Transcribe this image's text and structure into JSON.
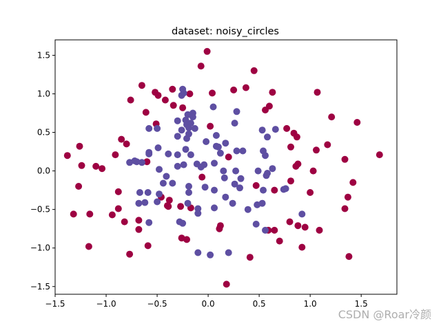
{
  "chart_data": {
    "type": "scatter",
    "title": "dataset: noisy_circles",
    "xlabel": "",
    "ylabel": "",
    "xlim": [
      -1.5,
      1.85
    ],
    "ylim": [
      -1.6,
      1.7
    ],
    "xticks": [
      "−1.5",
      "−1.0",
      "−0.5",
      "0.0",
      "0.5",
      "1.0",
      "1.5"
    ],
    "xtick_values": [
      -1.5,
      -1.0,
      -0.5,
      0.0,
      0.5,
      1.0,
      1.5
    ],
    "yticks": [
      "−1.5",
      "−1.0",
      "−0.5",
      "0.0",
      "0.5",
      "1.0",
      "1.5"
    ],
    "ytick_values": [
      -1.5,
      -1.0,
      -0.5,
      0.0,
      0.5,
      1.0,
      1.5
    ],
    "grid": false,
    "colors": {
      "outer": "#9e0142",
      "inner": "#5e4fa2"
    },
    "series": [
      {
        "class": "outer",
        "points": [
          [
            -0.01,
            1.55
          ],
          [
            -0.07,
            1.36
          ],
          [
            0.45,
            1.3
          ],
          [
            0.37,
            1.08
          ],
          [
            0.63,
            1.02
          ],
          [
            1.07,
            1.02
          ],
          [
            -0.65,
            1.11
          ],
          [
            -0.52,
            1.02
          ],
          [
            -0.35,
            1.06
          ],
          [
            -0.18,
            1.0
          ],
          [
            0.04,
            1.01
          ],
          [
            0.25,
            1.05
          ],
          [
            -0.76,
            0.92
          ],
          [
            -0.49,
            0.98
          ],
          [
            -0.42,
            0.92
          ],
          [
            -0.34,
            0.85
          ],
          [
            -0.25,
            0.82
          ],
          [
            0.6,
            0.84
          ],
          [
            0.56,
            0.79
          ],
          [
            -0.61,
            0.76
          ],
          [
            -0.51,
            0.61
          ],
          [
            1.21,
            0.7
          ],
          [
            0.77,
            0.55
          ],
          [
            0.84,
            0.49
          ],
          [
            1.46,
            0.63
          ],
          [
            0.87,
            0.44
          ],
          [
            0.02,
            0.58
          ],
          [
            -0.85,
            0.41
          ],
          [
            -0.8,
            0.35
          ],
          [
            -0.6,
            0.12
          ],
          [
            0.81,
            0.31
          ],
          [
            1.17,
            0.34
          ],
          [
            1.06,
            0.27
          ],
          [
            -1.38,
            0.2
          ],
          [
            -1.26,
            0.32
          ],
          [
            -0.91,
            0.21
          ],
          [
            0.2,
            0.18
          ],
          [
            0.88,
            0.09
          ],
          [
            0.86,
            0.06
          ],
          [
            1.68,
            0.21
          ],
          [
            1.34,
            0.15
          ],
          [
            -1.24,
            0.07
          ],
          [
            -1.1,
            0.06
          ],
          [
            -1.04,
            0.03
          ],
          [
            1.03,
            0.0
          ],
          [
            0.65,
            -0.25
          ],
          [
            0.81,
            -0.13
          ],
          [
            -1.27,
            -0.2
          ],
          [
            -0.88,
            -0.27
          ],
          [
            1.0,
            -0.28
          ],
          [
            1.42,
            -0.15
          ],
          [
            1.37,
            -0.34
          ],
          [
            -0.46,
            -0.34
          ],
          [
            -0.38,
            -0.38
          ],
          [
            -0.88,
            -0.49
          ],
          [
            -0.27,
            -0.46
          ],
          [
            -0.39,
            -0.46
          ],
          [
            -0.17,
            -0.48
          ],
          [
            -1.32,
            -0.56
          ],
          [
            -1.16,
            -0.56
          ],
          [
            -0.94,
            -0.57
          ],
          [
            -0.82,
            -0.66
          ],
          [
            -0.68,
            -0.64
          ],
          [
            1.34,
            -0.49
          ],
          [
            0.88,
            -0.71
          ],
          [
            0.95,
            -0.73
          ],
          [
            1.09,
            -0.77
          ],
          [
            0.8,
            -0.66
          ],
          [
            0.59,
            -0.77
          ],
          [
            0.65,
            -0.77
          ],
          [
            0.12,
            -0.71
          ],
          [
            0.11,
            -0.75
          ],
          [
            -0.68,
            -0.76
          ],
          [
            -0.26,
            -0.87
          ],
          [
            -0.21,
            -0.89
          ],
          [
            -0.59,
            -0.97
          ],
          [
            -1.17,
            -0.98
          ],
          [
            0.7,
            -0.91
          ],
          [
            0.92,
            -0.99
          ],
          [
            -0.77,
            -1.08
          ],
          [
            0.41,
            -1.12
          ],
          [
            1.38,
            -1.11
          ],
          [
            0.18,
            -1.47
          ],
          [
            0.47,
            -0.19
          ],
          [
            -0.4,
            -0.45
          ],
          [
            -0.06,
            -0.08
          ]
        ]
      },
      {
        "class": "inner",
        "points": [
          [
            -0.25,
            1.06
          ],
          [
            -0.24,
            1.01
          ],
          [
            -0.26,
            0.98
          ],
          [
            0.05,
            0.83
          ],
          [
            0.28,
            0.77
          ],
          [
            -0.2,
            0.73
          ],
          [
            -0.15,
            0.75
          ],
          [
            -0.15,
            0.7
          ],
          [
            -0.22,
            0.66
          ],
          [
            -0.3,
            0.65
          ],
          [
            -0.21,
            0.6
          ],
          [
            -0.17,
            0.62
          ],
          [
            0.26,
            0.62
          ],
          [
            -0.58,
            0.55
          ],
          [
            -0.5,
            0.55
          ],
          [
            -0.26,
            0.53
          ],
          [
            -0.19,
            0.56
          ],
          [
            -0.13,
            0.55
          ],
          [
            0.53,
            0.53
          ],
          [
            0.66,
            0.54
          ],
          [
            -0.19,
            0.48
          ],
          [
            0.08,
            0.46
          ],
          [
            0.17,
            0.36
          ],
          [
            -0.21,
            0.42
          ],
          [
            -0.3,
            0.45
          ],
          [
            0.58,
            0.44
          ],
          [
            -0.02,
            0.38
          ],
          [
            0.08,
            0.32
          ],
          [
            -0.49,
            0.3
          ],
          [
            -0.22,
            0.28
          ],
          [
            0.1,
            0.31
          ],
          [
            -0.58,
            0.24
          ],
          [
            -0.58,
            0.22
          ],
          [
            -0.17,
            0.21
          ],
          [
            0.28,
            0.26
          ],
          [
            0.34,
            0.26
          ],
          [
            0.54,
            0.26
          ],
          [
            -0.39,
            0.22
          ],
          [
            -0.3,
            0.21
          ],
          [
            0.56,
            0.2
          ],
          [
            0.12,
            0.23
          ],
          [
            -0.77,
            0.11
          ],
          [
            -0.7,
            0.12
          ],
          [
            -0.72,
            0.13
          ],
          [
            -0.65,
            0.11
          ],
          [
            -0.04,
            0.08
          ],
          [
            -0.11,
            0.09
          ],
          [
            -0.24,
            0.08
          ],
          [
            0.06,
            0.1
          ],
          [
            -0.3,
            0.06
          ],
          [
            -0.07,
            0.05
          ],
          [
            -0.48,
            0.02
          ],
          [
            0.15,
            0.0
          ],
          [
            0.27,
            0.0
          ],
          [
            0.49,
            0.0
          ],
          [
            0.63,
            0.03
          ],
          [
            -0.41,
            -0.07
          ],
          [
            -0.44,
            -0.16
          ],
          [
            -0.35,
            -0.16
          ],
          [
            -0.19,
            -0.2
          ],
          [
            0.16,
            -0.09
          ],
          [
            0.57,
            -0.06
          ],
          [
            0.32,
            -0.1
          ],
          [
            -0.67,
            -0.28
          ],
          [
            -0.59,
            -0.28
          ],
          [
            -0.48,
            -0.3
          ],
          [
            -0.19,
            -0.28
          ],
          [
            -0.03,
            -0.21
          ],
          [
            0.06,
            -0.25
          ],
          [
            0.26,
            -0.17
          ],
          [
            0.31,
            -0.22
          ],
          [
            0.54,
            -0.25
          ],
          [
            0.76,
            -0.23
          ],
          [
            0.74,
            -0.24
          ],
          [
            -0.68,
            -0.42
          ],
          [
            -0.62,
            -0.41
          ],
          [
            -0.5,
            -0.4
          ],
          [
            0.17,
            -0.34
          ],
          [
            0.53,
            -0.42
          ],
          [
            0.48,
            -0.44
          ],
          [
            0.39,
            -0.5
          ],
          [
            -0.2,
            -0.42
          ],
          [
            -0.1,
            -0.49
          ],
          [
            0.24,
            -0.42
          ],
          [
            0.06,
            -0.48
          ],
          [
            -0.1,
            -0.55
          ],
          [
            0.92,
            -0.56
          ],
          [
            0.47,
            -0.69
          ],
          [
            -0.58,
            -0.67
          ],
          [
            -0.28,
            -0.66
          ],
          [
            -0.25,
            -0.68
          ],
          [
            0.56,
            -0.77
          ],
          [
            -0.1,
            -1.06
          ],
          [
            0.02,
            -1.09
          ],
          [
            0.2,
            -1.06
          ],
          [
            0.58,
            -0.03
          ]
        ]
      }
    ]
  },
  "watermark": "CSDN @Roar冷颜"
}
